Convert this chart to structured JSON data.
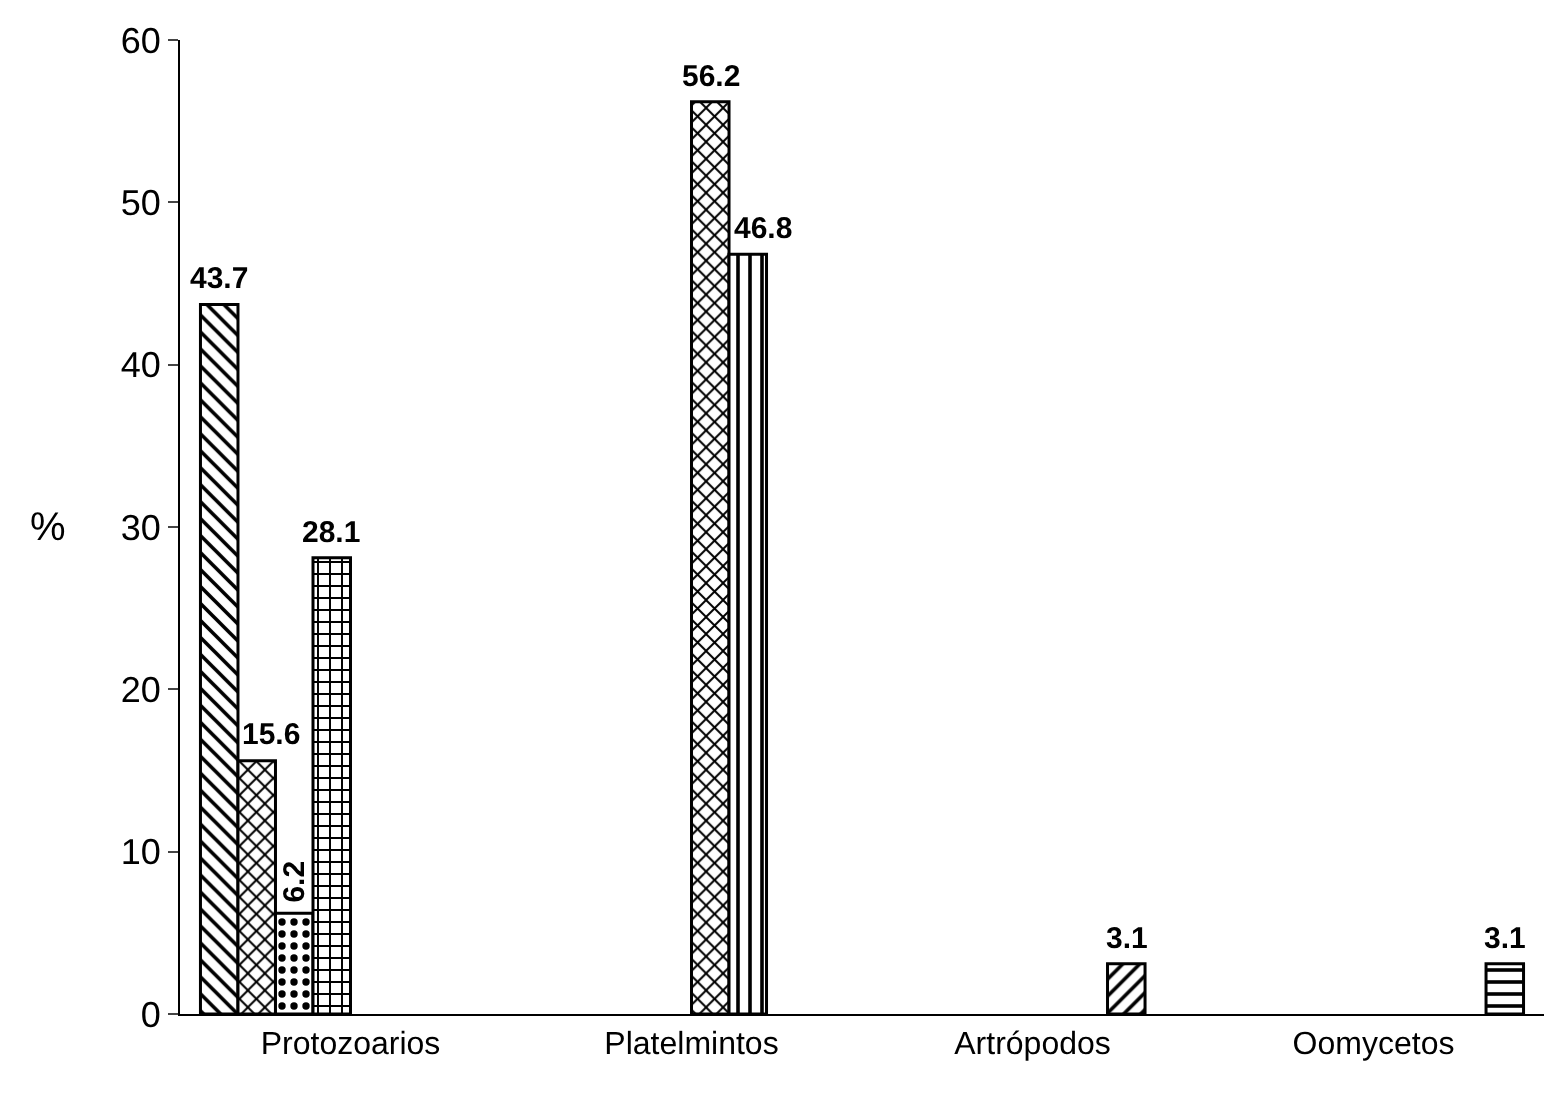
{
  "chart_data": {
    "type": "bar",
    "categories": [
      "Protozoarios",
      "Platelmintos",
      "Artrópodos",
      "Oomycetos"
    ],
    "series": [
      {
        "color": "#000000",
        "values": [
          43.7,
          null,
          null,
          null
        ]
      },
      {
        "color": "#000000",
        "values": [
          15.6,
          null,
          null,
          null
        ]
      },
      {
        "color": "#000000",
        "values": [
          6.2,
          null,
          null,
          null
        ]
      },
      {
        "color": "#000000",
        "values": [
          28.1,
          null,
          null,
          null
        ]
      },
      {
        "color": "#000000",
        "values": [
          null,
          56.2,
          null,
          null
        ]
      },
      {
        "color": "#000000",
        "values": [
          null,
          46.8,
          null,
          null
        ]
      },
      {
        "color": "#000000",
        "values": [
          null,
          null,
          3.1,
          null
        ]
      },
      {
        "color": "#000000",
        "values": [
          null,
          null,
          null,
          3.1
        ]
      }
    ],
    "ylabel": "%",
    "ylim": [
      0,
      60
    ],
    "yticks": [
      0,
      10,
      20,
      30,
      40,
      50,
      60
    ],
    "grid": false,
    "data_labels": true
  }
}
